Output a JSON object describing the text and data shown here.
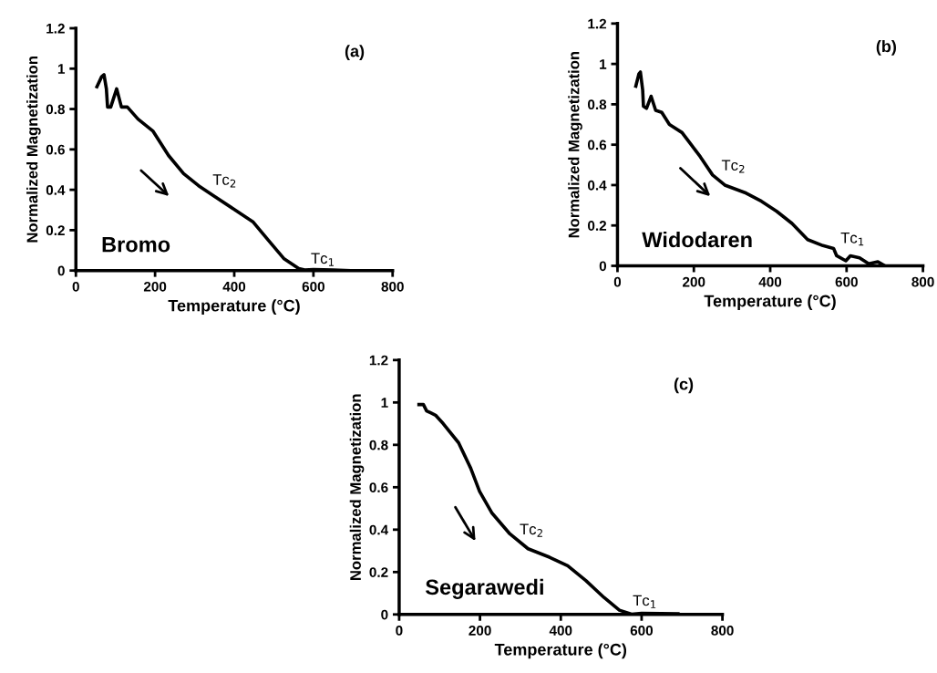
{
  "chart_data": [
    {
      "type": "line",
      "xlabel": "Temperature (°C)",
      "ylabel": "Normalized Magnetization",
      "xlim": [
        0,
        800
      ],
      "xticks": [
        0,
        200,
        400,
        600,
        800
      ],
      "ylim": [
        0,
        1.2
      ],
      "yticks": [
        0,
        0.2,
        0.4,
        0.6,
        0.8,
        1,
        1.2
      ],
      "grid": false,
      "marker": "none",
      "line_style": "solid",
      "series": [
        {
          "color": "#000000",
          "x": [
            53,
            65,
            71,
            77,
            80,
            88,
            103,
            115,
            130,
            157,
            195,
            234,
            272,
            310,
            348,
            402,
            448,
            486,
            525,
            563,
            578,
            600,
            650,
            690
          ],
          "values": [
            0.91,
            0.96,
            0.97,
            0.9,
            0.81,
            0.81,
            0.9,
            0.81,
            0.81,
            0.75,
            0.69,
            0.57,
            0.48,
            0.42,
            0.37,
            0.3,
            0.24,
            0.15,
            0.06,
            0.01,
            0.003,
            0.005,
            0.003,
            0
          ]
        }
      ],
      "annotations": [
        "(a)",
        "Bromo",
        "Tc$_{2}$",
        "Tc$_{1}$"
      ]
    },
    {
      "type": "line",
      "xlabel": "Temperature (°C)",
      "ylabel": "Normalized Magnetization",
      "xlim": [
        0,
        800
      ],
      "xticks": [
        0,
        200,
        400,
        600,
        800
      ],
      "ylim": [
        0,
        1.2
      ],
      "yticks": [
        0,
        0.2,
        0.4,
        0.6,
        0.8,
        1,
        1.2
      ],
      "grid": false,
      "marker": "none",
      "line_style": "solid",
      "series": [
        {
          "color": "#000000",
          "x": [
            48,
            56,
            60,
            66,
            68,
            76,
            88,
            100,
            116,
            136,
            169,
            193,
            217,
            249,
            281,
            337,
            377,
            417,
            457,
            498,
            538,
            566,
            574,
            598,
            610,
            634,
            658,
            682,
            698
          ],
          "values": [
            0.89,
            0.95,
            0.96,
            0.87,
            0.79,
            0.78,
            0.84,
            0.77,
            0.76,
            0.7,
            0.66,
            0.6,
            0.54,
            0.45,
            0.4,
            0.36,
            0.32,
            0.27,
            0.21,
            0.13,
            0.1,
            0.086,
            0.05,
            0.025,
            0.05,
            0.04,
            0.01,
            0.02,
            0.003
          ]
        }
      ],
      "annotations": [
        "(b)",
        "Widodaren",
        "Tc$_{2}$",
        "Tc$_{1}$"
      ]
    },
    {
      "type": "line",
      "xlabel": "Temperature (°C)",
      "ylabel": "Normalized Magnetization",
      "xlim": [
        0,
        800
      ],
      "xticks": [
        0,
        200,
        400,
        600,
        800
      ],
      "ylim": [
        0,
        1.2
      ],
      "yticks": [
        0,
        0.2,
        0.4,
        0.6,
        0.8,
        1,
        1.2
      ],
      "grid": false,
      "marker": "none",
      "line_style": "solid",
      "series": [
        {
          "color": "#000000",
          "x": [
            49,
            60,
            68,
            79,
            90,
            109,
            147,
            177,
            199,
            229,
            274,
            319,
            372,
            417,
            462,
            507,
            545,
            575,
            600,
            690
          ],
          "values": [
            0.99,
            0.99,
            0.96,
            0.95,
            0.94,
            0.9,
            0.81,
            0.69,
            0.58,
            0.48,
            0.38,
            0.31,
            0.27,
            0.23,
            0.16,
            0.08,
            0.02,
            0.001,
            0.005,
            0.003
          ]
        }
      ],
      "annotations": [
        "(c)",
        "Segarawedi",
        "Tc$_{2}$",
        "Tc$_{1}$"
      ]
    }
  ]
}
